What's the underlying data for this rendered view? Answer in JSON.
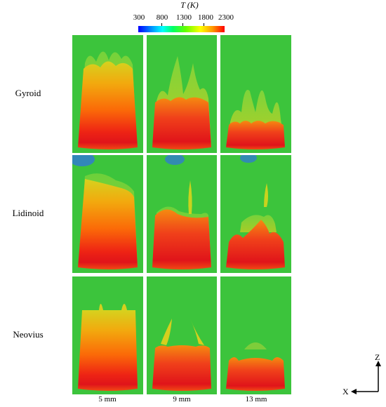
{
  "colorbar": {
    "title": "T (K)",
    "ticks": [
      "300",
      "800",
      "1300",
      "1800",
      "2300"
    ],
    "min": 300,
    "max": 2300
  },
  "rows": [
    "Gyroid",
    "Lidinoid",
    "Neovius"
  ],
  "columns": [
    "5 mm",
    "9 mm",
    "13 mm"
  ],
  "axes": {
    "vertical": "Z",
    "horizontal": "X"
  },
  "colors": {
    "background_field": "#39c639",
    "hot_core": "#e8161a",
    "mid": "#ff8a00",
    "warm_top": "#d8cc1e",
    "cold_spot": "#1f5bd6"
  }
}
